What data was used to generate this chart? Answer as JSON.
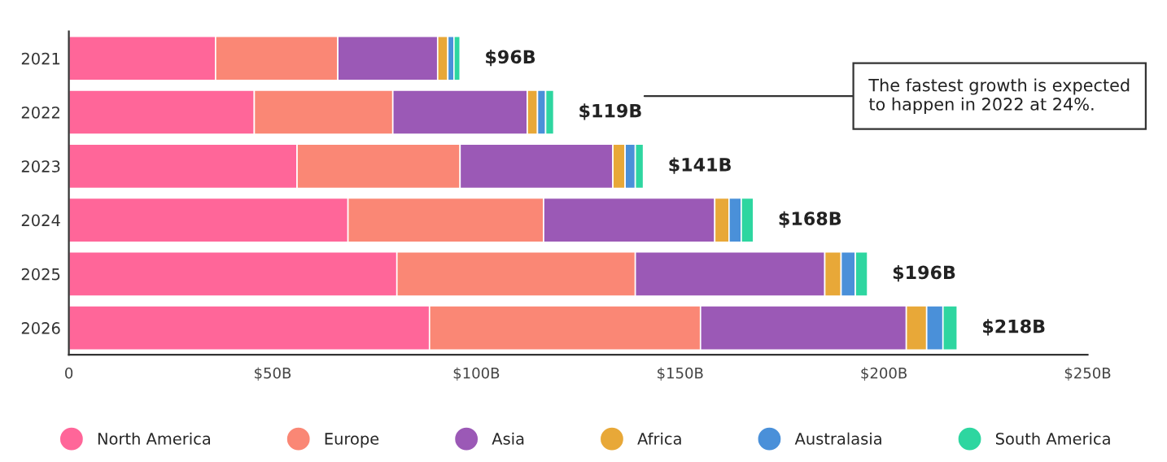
{
  "chart_data": {
    "type": "bar",
    "orientation": "horizontal",
    "stacked": true,
    "categories": [
      "2021",
      "2022",
      "2023",
      "2024",
      "2025",
      "2026"
    ],
    "series": [
      {
        "name": "North America",
        "color": "#ff6699",
        "values": [
          36,
          45.5,
          56,
          68.5,
          80.5,
          88.5
        ]
      },
      {
        "name": "Europe",
        "color": "#fa8775",
        "values": [
          30,
          34,
          40,
          48,
          58.5,
          66.5
        ]
      },
      {
        "name": "Asia",
        "color": "#9b59b6",
        "values": [
          24.5,
          33,
          37.5,
          42,
          46.5,
          50.5
        ]
      },
      {
        "name": "Africa",
        "color": "#e8a838",
        "values": [
          2.5,
          2.5,
          3,
          3.5,
          4,
          5
        ]
      },
      {
        "name": "Australasia",
        "color": "#4a90d9",
        "values": [
          1.5,
          2,
          2.5,
          3,
          3.5,
          4
        ]
      },
      {
        "name": "South America",
        "color": "#2ed6a0",
        "values": [
          1.5,
          2,
          2,
          3,
          3,
          3.5
        ]
      }
    ],
    "totals": [
      "$96B",
      "$119B",
      "$141B",
      "$168B",
      "$196B",
      "$218B"
    ],
    "xlim": [
      0,
      250
    ],
    "xticks": [
      0,
      {
        "value": 50,
        "label": "$50B"
      },
      {
        "value": 100,
        "label": "$100B"
      },
      {
        "value": 150,
        "label": "$150B"
      },
      {
        "value": 200,
        "label": "$200B"
      },
      {
        "value": 250,
        "label": "$250B"
      }
    ],
    "annotations": [
      "The fastest growth is expected\nto happen in 2022 at 24%."
    ],
    "grid": false,
    "legend": "bottom"
  }
}
